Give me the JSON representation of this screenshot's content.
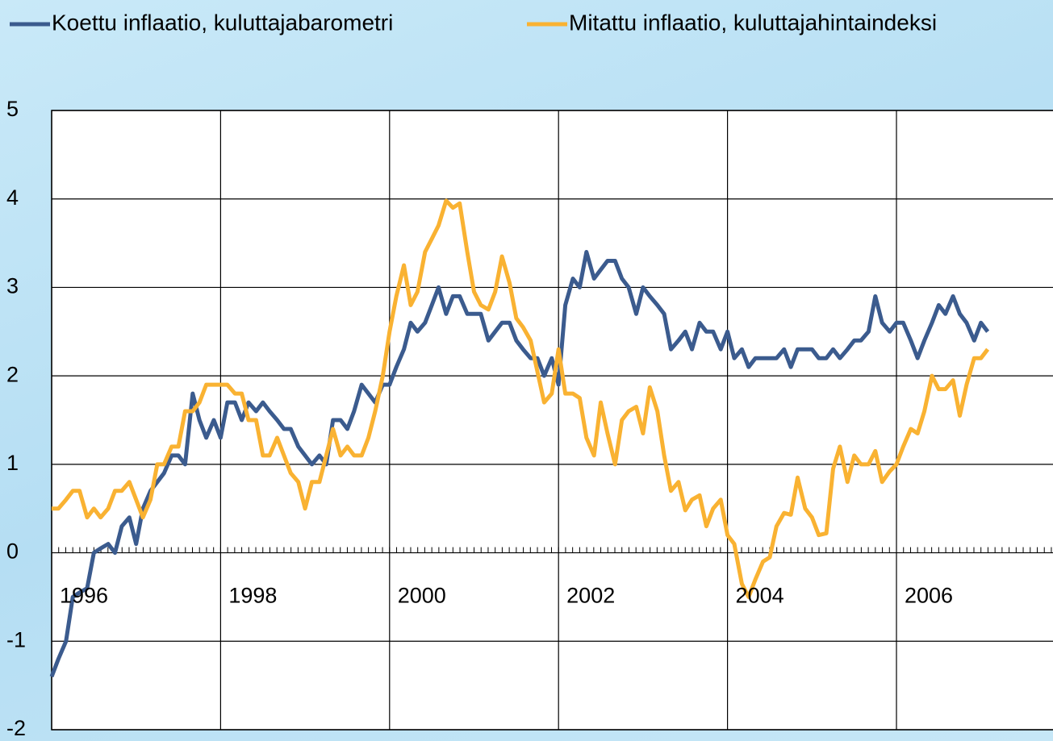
{
  "chart_data": {
    "type": "line",
    "x": [
      1996,
      1996.08,
      1996.17,
      1996.25,
      1996.33,
      1996.42,
      1996.5,
      1996.58,
      1996.67,
      1996.75,
      1996.83,
      1996.92,
      1997,
      1997.08,
      1997.17,
      1997.25,
      1997.33,
      1997.42,
      1997.5,
      1997.58,
      1997.67,
      1997.75,
      1997.83,
      1997.92,
      1998,
      1998.08,
      1998.17,
      1998.25,
      1998.33,
      1998.42,
      1998.5,
      1998.58,
      1998.67,
      1998.75,
      1998.83,
      1998.92,
      1999,
      1999.08,
      1999.17,
      1999.25,
      1999.33,
      1999.42,
      1999.5,
      1999.58,
      1999.67,
      1999.75,
      1999.83,
      1999.92,
      2000,
      2000.08,
      2000.17,
      2000.25,
      2000.33,
      2000.42,
      2000.5,
      2000.58,
      2000.67,
      2000.75,
      2000.83,
      2000.92,
      2001,
      2001.08,
      2001.17,
      2001.25,
      2001.33,
      2001.42,
      2001.5,
      2001.58,
      2001.67,
      2001.75,
      2001.83,
      2001.92,
      2002,
      2002.08,
      2002.17,
      2002.25,
      2002.33,
      2002.42,
      2002.5,
      2002.58,
      2002.67,
      2002.75,
      2002.83,
      2002.92,
      2003,
      2003.08,
      2003.17,
      2003.25,
      2003.33,
      2003.42,
      2003.5,
      2003.58,
      2003.67,
      2003.75,
      2003.83,
      2003.92,
      2004,
      2004.08,
      2004.17,
      2004.25,
      2004.33,
      2004.42,
      2004.5,
      2004.58,
      2004.67,
      2004.75,
      2004.83,
      2004.92,
      2005,
      2005.08,
      2005.17,
      2005.25,
      2005.33,
      2005.42,
      2005.5,
      2005.58,
      2005.67,
      2005.75,
      2005.83,
      2005.92,
      2006,
      2006.08,
      2006.17,
      2006.25,
      2006.33,
      2006.42,
      2006.5,
      2006.58,
      2006.67,
      2006.75,
      2006.83,
      2006.92,
      2007,
      2007.08
    ],
    "series": [
      {
        "name": "Koettu inflaatio, kuluttajabarometri",
        "color": "#3b5b8e",
        "values": [
          -1.4,
          -1.2,
          -1.0,
          -0.5,
          -0.45,
          -0.4,
          0.0,
          0.05,
          0.1,
          0.0,
          0.3,
          0.4,
          0.1,
          0.5,
          0.7,
          0.8,
          0.9,
          1.1,
          1.1,
          1.0,
          1.8,
          1.5,
          1.3,
          1.5,
          1.3,
          1.7,
          1.7,
          1.5,
          1.7,
          1.6,
          1.7,
          1.6,
          1.5,
          1.4,
          1.4,
          1.2,
          1.1,
          1.0,
          1.1,
          1.0,
          1.5,
          1.5,
          1.4,
          1.6,
          1.9,
          1.8,
          1.7,
          1.9,
          1.9,
          2.1,
          2.3,
          2.6,
          2.5,
          2.6,
          2.8,
          3.0,
          2.7,
          2.9,
          2.9,
          2.7,
          2.7,
          2.7,
          2.4,
          2.5,
          2.6,
          2.6,
          2.4,
          2.3,
          2.2,
          2.2,
          2.0,
          2.2,
          1.9,
          2.8,
          3.1,
          3.0,
          3.4,
          3.1,
          3.2,
          3.3,
          3.3,
          3.1,
          3.0,
          2.7,
          3.0,
          2.9,
          2.8,
          2.7,
          2.3,
          2.4,
          2.5,
          2.3,
          2.6,
          2.5,
          2.5,
          2.3,
          2.5,
          2.2,
          2.3,
          2.1,
          2.2,
          2.2,
          2.2,
          2.2,
          2.3,
          2.1,
          2.3,
          2.3,
          2.3,
          2.2,
          2.2,
          2.3,
          2.2,
          2.3,
          2.4,
          2.4,
          2.5,
          2.9,
          2.6,
          2.5,
          2.6,
          2.6,
          2.4,
          2.2,
          2.4,
          2.6,
          2.8,
          2.7,
          2.9,
          2.7,
          2.6,
          2.4,
          2.6,
          2.5
        ]
      },
      {
        "name": "Mitattu inflaatio, kuluttajahintaindeksi",
        "color": "#f9b232",
        "values": [
          0.5,
          0.5,
          0.6,
          0.7,
          0.7,
          0.4,
          0.5,
          0.4,
          0.5,
          0.7,
          0.7,
          0.8,
          0.6,
          0.4,
          0.6,
          1.0,
          1.0,
          1.2,
          1.2,
          1.6,
          1.6,
          1.7,
          1.9,
          1.9,
          1.9,
          1.9,
          1.8,
          1.8,
          1.5,
          1.5,
          1.1,
          1.1,
          1.3,
          1.1,
          0.9,
          0.8,
          0.5,
          0.8,
          0.8,
          1.1,
          1.4,
          1.1,
          1.2,
          1.1,
          1.1,
          1.3,
          1.6,
          2.0,
          2.5,
          2.9,
          3.25,
          2.8,
          2.95,
          3.4,
          3.55,
          3.7,
          3.98,
          3.9,
          3.95,
          3.4,
          2.95,
          2.8,
          2.75,
          2.95,
          3.35,
          3.05,
          2.65,
          2.55,
          2.4,
          2.05,
          1.7,
          1.8,
          2.3,
          1.8,
          1.8,
          1.75,
          1.3,
          1.1,
          1.7,
          1.35,
          1.0,
          1.5,
          1.6,
          1.65,
          1.35,
          1.87,
          1.6,
          1.1,
          0.7,
          0.8,
          0.48,
          0.6,
          0.65,
          0.3,
          0.5,
          0.6,
          0.2,
          0.1,
          -0.35,
          -0.5,
          -0.3,
          -0.1,
          -0.05,
          0.3,
          0.45,
          0.43,
          0.85,
          0.5,
          0.4,
          0.2,
          0.22,
          0.95,
          1.2,
          0.8,
          1.1,
          1.0,
          1.0,
          1.15,
          0.8,
          0.92,
          1.0,
          1.2,
          1.4,
          1.35,
          1.6,
          2.0,
          1.85,
          1.85,
          1.95,
          1.55,
          1.9,
          2.2,
          2.2,
          2.3
        ]
      }
    ],
    "xlim": [
      1996,
      2008
    ],
    "xticks": [
      1996,
      1998,
      2000,
      2002,
      2004,
      2006
    ],
    "ylim": [
      -2,
      5
    ],
    "yticks": [
      -2,
      -1,
      0,
      1,
      2,
      3,
      4,
      5
    ],
    "grid": true,
    "legend": "top"
  }
}
